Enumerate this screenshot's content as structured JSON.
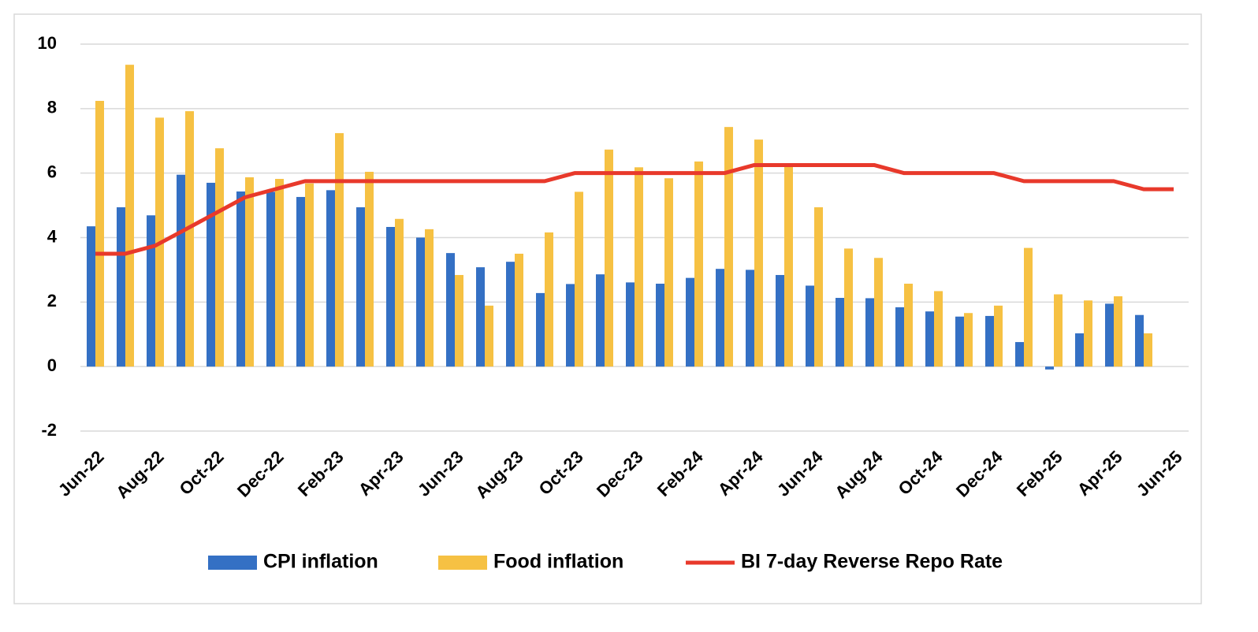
{
  "chart_data": {
    "type": "bar",
    "categories": [
      "Jun-22",
      null,
      "Aug-22",
      null,
      "Oct-22",
      null,
      "Dec-22",
      null,
      "Feb-23",
      null,
      "Apr-23",
      null,
      "Jun-23",
      null,
      "Aug-23",
      null,
      "Oct-23",
      null,
      "Dec-23",
      null,
      "Feb-24",
      null,
      "Apr-24",
      null,
      "Jun-24",
      null,
      "Aug-24",
      null,
      "Oct-24",
      null,
      "Dec-24",
      null,
      "Feb-25",
      null,
      "Apr-25",
      null,
      "Jun-25"
    ],
    "series": [
      {
        "name": "CPI inflation",
        "color": "#3470c4",
        "type": "bar",
        "values": [
          4.35,
          4.94,
          4.69,
          5.95,
          5.7,
          5.43,
          5.42,
          5.26,
          5.47,
          4.94,
          4.33,
          4.0,
          3.52,
          3.08,
          3.25,
          2.28,
          2.56,
          2.86,
          2.61,
          2.57,
          2.75,
          3.03,
          3.0,
          2.84,
          2.51,
          2.13,
          2.12,
          1.84,
          1.71,
          1.55,
          1.57,
          0.76,
          -0.09,
          1.03,
          1.95,
          1.6,
          null
        ]
      },
      {
        "name": "Food inflation",
        "color": "#f6c143",
        "type": "bar",
        "values": [
          8.24,
          9.36,
          7.72,
          7.92,
          6.77,
          5.87,
          5.82,
          5.68,
          7.24,
          6.04,
          4.58,
          4.26,
          2.84,
          1.89,
          3.5,
          4.16,
          5.42,
          6.73,
          6.18,
          5.84,
          6.36,
          7.43,
          7.04,
          6.24,
          4.94,
          3.66,
          3.37,
          2.57,
          2.34,
          1.66,
          1.89,
          3.68,
          2.24,
          2.05,
          2.18,
          1.03,
          null
        ]
      },
      {
        "name": "BI 7-day Reverse Repo Rate",
        "color": "#e8392b",
        "type": "line",
        "values": [
          3.5,
          3.5,
          3.75,
          4.25,
          4.75,
          5.25,
          5.5,
          5.75,
          5.75,
          5.75,
          5.75,
          5.75,
          5.75,
          5.75,
          5.75,
          5.75,
          6.0,
          6.0,
          6.0,
          6.0,
          6.0,
          6.0,
          6.25,
          6.25,
          6.25,
          6.25,
          6.25,
          6.0,
          6.0,
          6.0,
          6.0,
          5.75,
          5.75,
          5.75,
          5.75,
          5.5,
          5.5
        ]
      }
    ],
    "ylim": [
      -2,
      10
    ],
    "yticks": [
      -2,
      0,
      2,
      4,
      6,
      8,
      10
    ],
    "grid": true,
    "legend": "bottom"
  }
}
